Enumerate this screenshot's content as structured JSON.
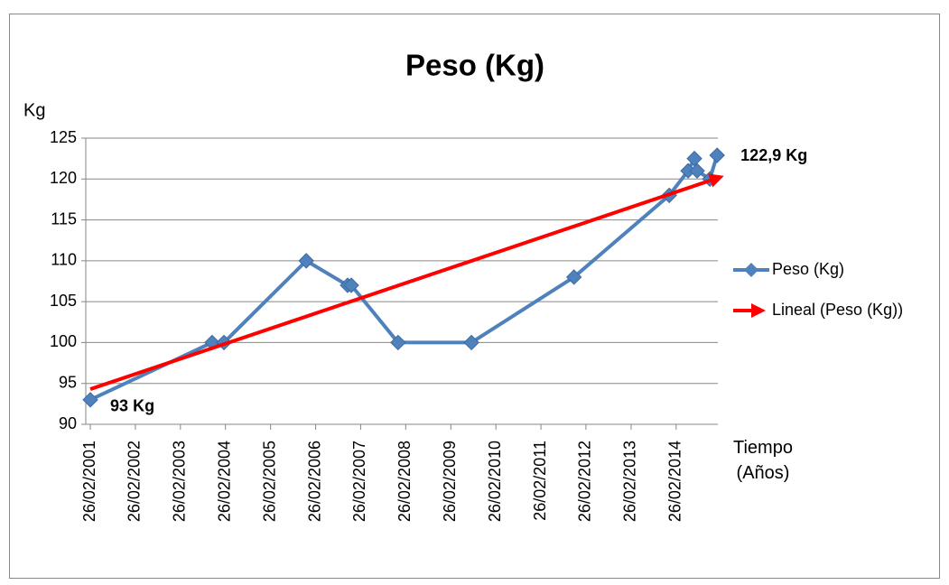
{
  "chart_data": {
    "type": "line",
    "title": "Peso (Kg)",
    "y_label": "Kg",
    "x_label": "Tiempo (Años)",
    "xlim": [
      "2001-01-20",
      "2015-01-30"
    ],
    "xticks": [
      {
        "value": "2001-02-26",
        "label": "26/02/2001"
      },
      {
        "value": "2002-02-26",
        "label": "26/02/2002"
      },
      {
        "value": "2003-02-26",
        "label": "26/02/2003"
      },
      {
        "value": "2004-02-26",
        "label": "26/02/2004"
      },
      {
        "value": "2005-02-26",
        "label": "26/02/2005"
      },
      {
        "value": "2006-02-26",
        "label": "26/02/2006"
      },
      {
        "value": "2007-02-26",
        "label": "26/02/2007"
      },
      {
        "value": "2008-02-26",
        "label": "26/02/2008"
      },
      {
        "value": "2009-02-26",
        "label": "26/02/2009"
      },
      {
        "value": "2010-02-26",
        "label": "26/02/2010"
      },
      {
        "value": "2011-02-26",
        "label": "26/02/2011"
      },
      {
        "value": "2012-02-26",
        "label": "26/02/2012"
      },
      {
        "value": "2013-02-26",
        "label": "26/02/2013"
      },
      {
        "value": "2014-02-26",
        "label": "26/02/2014"
      }
    ],
    "ylim": [
      90,
      125
    ],
    "yticks": [
      90,
      95,
      100,
      105,
      110,
      115,
      120,
      125
    ],
    "grid": true,
    "legend": "right",
    "series": [
      {
        "name": "Peso (Kg)",
        "color": "#4f81bd",
        "x": [
          "2001-02-26",
          "2003-11-10",
          "2004-02-14",
          "2005-12-12",
          "2006-11-12",
          "2006-12-12",
          "2007-12-26",
          "2009-08-12",
          "2011-11-21",
          "2014-01-01",
          "2014-06-03",
          "2014-07-24",
          "2014-08-15",
          "2014-11-26",
          "2015-01-24"
        ],
        "values": [
          93,
          100,
          100,
          110,
          107,
          107,
          100,
          100,
          108,
          118,
          121,
          122.5,
          121,
          120,
          122.9
        ]
      },
      {
        "name": "Lineal (Peso (Kg))",
        "color": "#ff0000",
        "x": [
          "2001-02-26",
          "2015-01-24"
        ],
        "values": [
          94.3,
          120.1
        ]
      }
    ],
    "annotations": [
      {
        "text": "93 Kg",
        "series": 0,
        "point": 0
      },
      {
        "text": "122,9 Kg",
        "series": 0,
        "point": 14
      }
    ]
  }
}
